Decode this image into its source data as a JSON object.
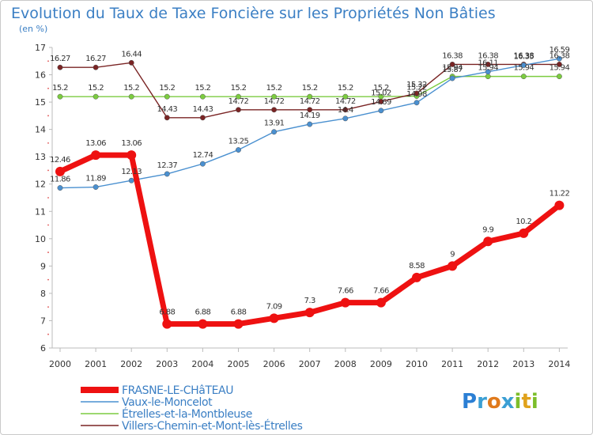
{
  "chart_data": {
    "type": "line",
    "title": "Evolution du Taux de Taxe Foncière sur les Propriétés Non Bâties",
    "ylabel": "(en %)",
    "xlabel": "",
    "x": [
      "2000",
      "2001",
      "2002",
      "2003",
      "2004",
      "2005",
      "2006",
      "2007",
      "2008",
      "2009",
      "2010",
      "2011",
      "2012",
      "2013",
      "2014"
    ],
    "ylim": [
      6,
      17
    ],
    "yticks": [
      "6",
      "7",
      "8",
      "9",
      "10",
      "11",
      "12",
      "13",
      "14",
      "15",
      "16",
      "17"
    ],
    "grid": false,
    "legend_position": "bottom-left",
    "series": [
      {
        "name": "FRASNE-LE-CHâTEAU",
        "color": "#ee1111",
        "values": [
          12.46,
          13.06,
          13.06,
          6.88,
          6.88,
          6.88,
          7.09,
          7.3,
          7.66,
          7.66,
          8.58,
          9,
          9.9,
          10.2,
          11.22
        ],
        "labels": [
          "12.46",
          "13.06",
          "13.06",
          "6.88",
          "6.88",
          "6.88",
          "7.09",
          "7.3",
          "7.66",
          "7.66",
          "8.58",
          "9",
          "9.9",
          "10.2",
          "11.22"
        ]
      },
      {
        "name": "Vaux-le-Moncelot",
        "color": "#4a90d0",
        "values": [
          11.86,
          11.89,
          12.13,
          12.37,
          12.74,
          13.25,
          13.91,
          14.19,
          14.4,
          14.69,
          14.98,
          15.87,
          16.11,
          16.35,
          16.59
        ],
        "labels": [
          "11.86",
          "11.89",
          "12.13",
          "12.37",
          "12.74",
          "13.25",
          "13.91",
          "14.19",
          "14.4",
          "14.69",
          "14.98",
          "15.87",
          "16.11",
          "16.35",
          "16.59"
        ]
      },
      {
        "name": "Étrelles-et-la-Montbleuse",
        "color": "#7ccc40",
        "values": [
          15.2,
          15.2,
          15.2,
          15.2,
          15.2,
          15.2,
          15.2,
          15.2,
          15.2,
          15.2,
          15.22,
          15.94,
          15.94,
          15.94,
          15.94
        ],
        "labels": [
          "15.2",
          "15.2",
          "15.2",
          "15.2",
          "15.2",
          "15.2",
          "15.2",
          "15.2",
          "15.2",
          "15.2",
          "15.22",
          "15.94",
          "15.94",
          "15.94",
          "15.94"
        ]
      },
      {
        "name": "Villers-Chemin-et-Mont-lès-Étrelles",
        "color": "#7a2424",
        "values": [
          16.27,
          16.27,
          16.44,
          14.43,
          14.43,
          14.72,
          14.72,
          14.72,
          14.72,
          15.02,
          15.32,
          16.38,
          16.38,
          16.38,
          16.38
        ],
        "labels": [
          "16.27",
          "16.27",
          "16.44",
          "14.43",
          "14.43",
          "14.72",
          "14.72",
          "14.72",
          "14.72",
          "15.02",
          "15.32",
          "16.38",
          "16.38",
          "16.38",
          "16.38"
        ]
      }
    ]
  },
  "brand": {
    "text": "Proxiti"
  }
}
